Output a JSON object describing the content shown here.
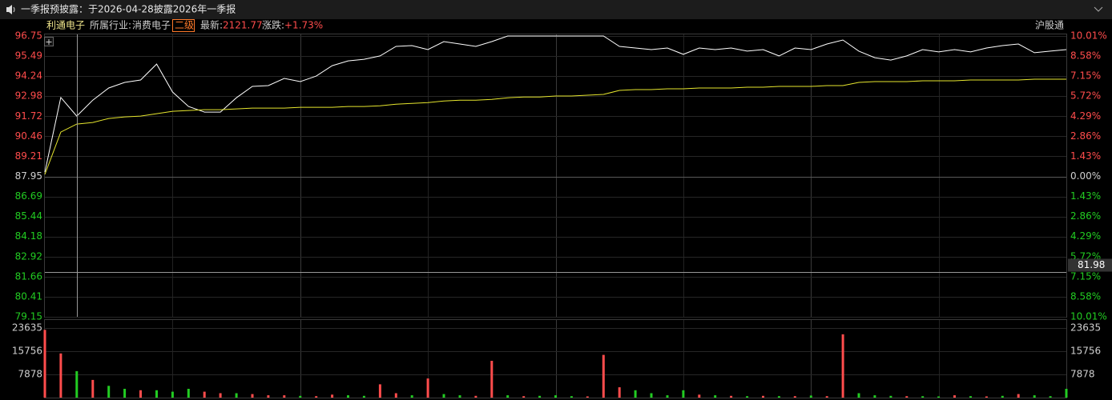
{
  "notice": "一季报预披露：于2026-04-28披露2026年一季报",
  "header": {
    "name": "利通电子",
    "industry_label": "所属行业:",
    "industry": "消费电子",
    "level": "二级",
    "latest_label": "最新:",
    "latest": "2121.77",
    "change_label": "涨跌:",
    "change": "+1.73%",
    "connect": "沪股通"
  },
  "cursor_value": 81.98,
  "chart_data": [
    {
      "type": "line",
      "ylim": [
        79.15,
        96.75
      ],
      "yticks": [
        96.75,
        95.49,
        94.24,
        92.98,
        91.72,
        90.46,
        89.21,
        87.95,
        86.69,
        85.44,
        84.18,
        82.92,
        81.66,
        80.41,
        79.15
      ],
      "y2lim": [
        -10.01,
        10.01
      ],
      "y2ticks": [
        {
          "value": 10.01,
          "label": "10.01%"
        },
        {
          "value": 8.58,
          "label": "8.58%"
        },
        {
          "value": 7.15,
          "label": "7.15%"
        },
        {
          "value": 5.72,
          "label": "5.72%"
        },
        {
          "value": 4.29,
          "label": "4.29%"
        },
        {
          "value": 2.86,
          "label": "2.86%"
        },
        {
          "value": 1.43,
          "label": "1.43%"
        },
        {
          "value": 0,
          "label": "0.00%"
        },
        {
          "value": -1.43,
          "label": "1.43%"
        },
        {
          "value": -2.86,
          "label": "2.86%"
        },
        {
          "value": -4.29,
          "label": "4.29%"
        },
        {
          "value": -5.72,
          "label": "5.72%"
        },
        {
          "value": -7.15,
          "label": "7.15%"
        },
        {
          "value": -8.58,
          "label": "8.58%"
        },
        {
          "value": -10.01,
          "label": "10.01%"
        }
      ],
      "series": [
        {
          "color": "#ffffff",
          "values": [
            88.22,
            92.9,
            91.73,
            92.73,
            93.49,
            93.84,
            93.99,
            94.99,
            93.24,
            92.33,
            91.98,
            91.98,
            92.88,
            93.59,
            93.64,
            94.09,
            93.89,
            94.24,
            94.89,
            95.19,
            95.29,
            95.5,
            96.1,
            96.15,
            95.9,
            96.4,
            96.25,
            96.1,
            96.4,
            96.75,
            96.75,
            96.75,
            96.75,
            96.75,
            96.75,
            96.75,
            96.1,
            96.0,
            95.9,
            96.0,
            95.6,
            96.0,
            95.9,
            96.0,
            95.8,
            95.9,
            95.5,
            96.0,
            95.9,
            96.25,
            96.5,
            95.8,
            95.39,
            95.24,
            95.5,
            95.9,
            95.75,
            95.9,
            95.75,
            96.0,
            96.15,
            96.25,
            95.7,
            95.8,
            95.9
          ]
        },
        {
          "color": "#e6e62e",
          "values": [
            88.07,
            90.73,
            91.23,
            91.33,
            91.58,
            91.68,
            91.73,
            91.88,
            92.03,
            92.08,
            92.13,
            92.13,
            92.18,
            92.23,
            92.23,
            92.23,
            92.28,
            92.28,
            92.28,
            92.33,
            92.33,
            92.38,
            92.48,
            92.53,
            92.58,
            92.68,
            92.73,
            92.73,
            92.78,
            92.88,
            92.93,
            92.93,
            92.99,
            92.99,
            93.04,
            93.09,
            93.34,
            93.39,
            93.39,
            93.44,
            93.44,
            93.49,
            93.49,
            93.49,
            93.54,
            93.54,
            93.59,
            93.59,
            93.59,
            93.64,
            93.64,
            93.84,
            93.89,
            93.89,
            93.89,
            93.94,
            93.94,
            93.94,
            93.99,
            93.99,
            93.99,
            93.99,
            94.04,
            94.04,
            94.04
          ]
        }
      ]
    },
    {
      "type": "bar",
      "ylim": [
        0,
        23635
      ],
      "yticks": [
        23635,
        15756,
        7878
      ],
      "values": [
        23000,
        15000,
        9000,
        6000,
        4000,
        3000,
        2500,
        2500,
        2000,
        3000,
        2000,
        1500,
        1500,
        1200,
        800,
        800,
        600,
        500,
        1000,
        800,
        600,
        4500,
        1500,
        800,
        6500,
        1200,
        800,
        600,
        12500,
        800,
        500,
        600,
        800,
        500,
        400,
        14500,
        3500,
        2500,
        1500,
        800,
        2500,
        1000,
        800,
        600,
        500,
        600,
        500,
        500,
        700,
        500,
        21500,
        1500,
        800,
        600,
        500,
        500,
        400,
        800,
        500,
        400,
        600,
        1200,
        800,
        500,
        3000
      ],
      "colors": [
        "#ff4c4c",
        "#ff4c4c",
        "#22cc22",
        "#ff4c4c",
        "#22cc22",
        "#22cc22",
        "#ff4c4c",
        "#22cc22",
        "#22cc22",
        "#22cc22",
        "#ff4c4c",
        "#ff4c4c",
        "#22cc22",
        "#ff4c4c",
        "#ff4c4c",
        "#ff4c4c",
        "#22cc22",
        "#ff4c4c",
        "#ff4c4c",
        "#22cc22",
        "#22cc22",
        "#ff4c4c",
        "#ff4c4c",
        "#22cc22",
        "#ff4c4c",
        "#22cc22",
        "#22cc22",
        "#ff4c4c",
        "#ff4c4c",
        "#22cc22",
        "#ff4c4c",
        "#22cc22",
        "#22cc22",
        "#22cc22",
        "#ff4c4c",
        "#ff4c4c",
        "#ff4c4c",
        "#22cc22",
        "#22cc22",
        "#22cc22",
        "#22cc22",
        "#ff4c4c",
        "#22cc22",
        "#ff4c4c",
        "#22cc22",
        "#ff4c4c",
        "#22cc22",
        "#ff4c4c",
        "#22cc22",
        "#ff4c4c",
        "#ff4c4c",
        "#22cc22",
        "#22cc22",
        "#22cc22",
        "#ff4c4c",
        "#22cc22",
        "#22cc22",
        "#ff4c4c",
        "#22cc22",
        "#ff4c4c",
        "#22cc22",
        "#ff4c4c",
        "#22cc22",
        "#22cc22",
        "#22cc22"
      ]
    }
  ]
}
